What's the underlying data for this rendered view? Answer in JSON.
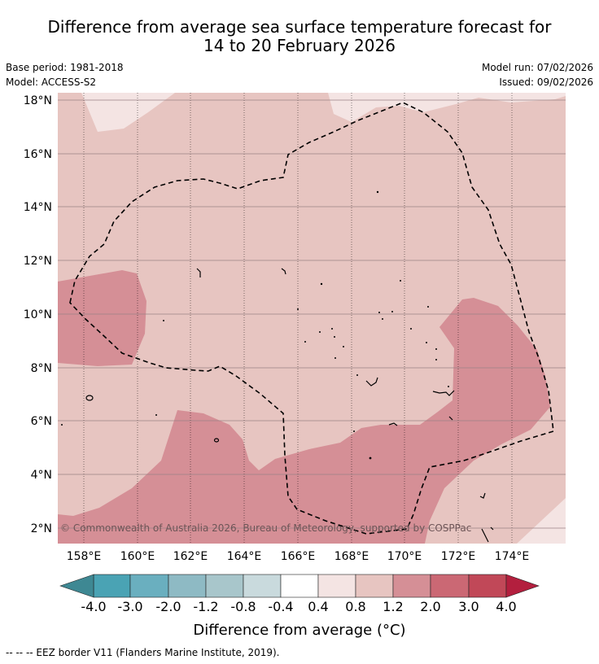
{
  "title": {
    "line1": "Difference from average sea surface temperature forecast for",
    "line2": "14 to 20 February 2026"
  },
  "info": {
    "base_period": "Base period: 1981-2018",
    "model": "Model: ACCESS-S2",
    "model_run": "Model run: 07/02/2026",
    "issued": "Issued: 09/02/2026"
  },
  "map": {
    "lat_labels": [
      "18°N",
      "16°N",
      "14°N",
      "12°N",
      "10°N",
      "8°N",
      "6°N",
      "4°N",
      "2°N"
    ],
    "lon_labels": [
      "158°E",
      "160°E",
      "162°E",
      "164°E",
      "166°E",
      "168°E",
      "170°E",
      "172°E",
      "174°E"
    ],
    "copyright": "© Commonwealth of Australia 2026, Bureau of Meteorology, supported by COSPPac"
  },
  "colorbar": {
    "ticks": [
      "-4.0",
      "-3.0",
      "-2.0",
      "-1.2",
      "-0.8",
      "-0.4",
      "0.4",
      "0.8",
      "1.2",
      "2.0",
      "3.0",
      "4.0"
    ],
    "colors": [
      "#4aa3b4",
      "#6aafbf",
      "#8ebac4",
      "#a8c6cb",
      "#c9dadd",
      "#ffffff",
      "#f4e4e3",
      "#e7c5c1",
      "#d58f96",
      "#cb6874",
      "#c14858"
    ],
    "extend_low_color": "#3e8893",
    "extend_high_color": "#b31f3e",
    "label": "Difference from average (°C)"
  },
  "footer": {
    "legend": "-- -- -- EEZ border V11 (Flanders Marine Institute, 2019)."
  }
}
